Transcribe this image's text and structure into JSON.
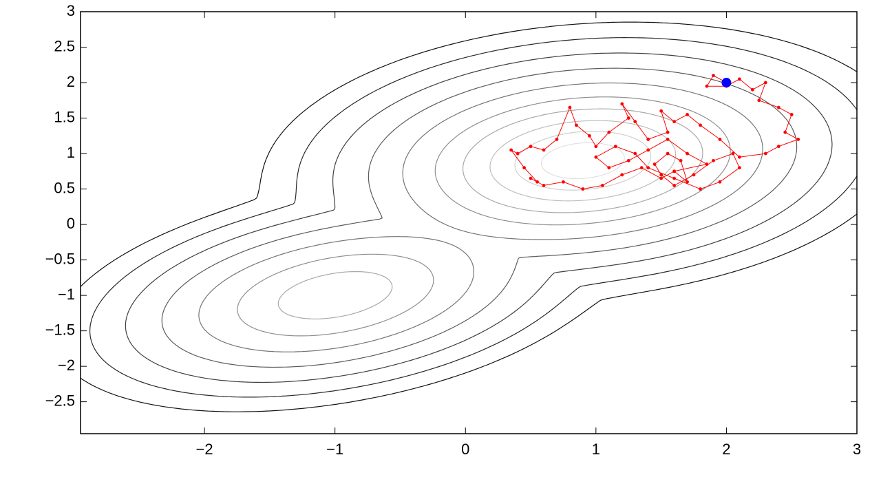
{
  "chart_data": {
    "type": "scatter",
    "x": [
      2.0,
      1.9,
      1.85,
      2.0,
      2.1,
      2.2,
      2.3,
      2.25,
      2.4,
      2.5,
      2.45,
      2.55,
      2.4,
      2.3,
      2.1,
      1.95,
      1.8,
      1.7,
      1.6,
      1.5,
      1.55,
      1.4,
      1.3,
      1.2,
      1.25,
      1.1,
      1.0,
      0.95,
      0.85,
      0.8,
      0.7,
      0.6,
      0.5,
      0.4,
      0.35,
      0.45,
      0.55,
      0.5,
      0.6,
      0.75,
      0.9,
      1.05,
      1.2,
      1.35,
      1.5,
      1.6,
      1.7,
      1.65,
      1.55,
      1.45,
      1.5,
      1.6,
      1.75,
      1.9,
      2.05,
      2.1,
      1.95,
      1.8,
      1.6,
      1.4,
      1.3,
      1.15,
      1.0,
      1.1,
      1.25,
      1.4,
      1.55,
      1.7,
      1.85,
      1.6
    ],
    "y": [
      2.0,
      2.1,
      1.95,
      1.95,
      2.05,
      1.9,
      2.0,
      1.75,
      1.65,
      1.55,
      1.3,
      1.2,
      1.1,
      1.0,
      0.95,
      1.2,
      1.4,
      1.55,
      1.45,
      1.6,
      1.3,
      1.2,
      1.45,
      1.7,
      1.5,
      1.3,
      1.1,
      1.25,
      1.4,
      1.65,
      1.2,
      1.05,
      1.1,
      1.0,
      1.05,
      0.8,
      0.6,
      0.65,
      0.55,
      0.6,
      0.5,
      0.55,
      0.7,
      0.8,
      0.65,
      0.75,
      0.6,
      0.9,
      1.0,
      0.85,
      0.7,
      0.55,
      0.7,
      0.9,
      1.0,
      0.8,
      0.6,
      0.5,
      0.65,
      0.8,
      1.0,
      1.1,
      0.95,
      0.8,
      0.9,
      1.05,
      1.2,
      1.0,
      0.85,
      0.75
    ],
    "color": "#ff0000",
    "start_color": "#0000ff",
    "xlim": [
      -2.95,
      3
    ],
    "ylim": [
      -2.95,
      3
    ],
    "xticks": [
      {
        "value": -2,
        "label": "−2"
      },
      {
        "value": -1,
        "label": "−1"
      },
      0,
      1,
      2,
      3
    ],
    "yticks": [
      {
        "value": -2.5,
        "label": "−2.5"
      },
      {
        "value": -2,
        "label": "−2"
      },
      {
        "value": -1.5,
        "label": "−1.5"
      },
      {
        "value": -1,
        "label": "−1"
      },
      {
        "value": -0.5,
        "label": "−0.5"
      },
      0,
      0.5,
      1,
      1.5,
      2,
      2.5,
      3
    ]
  }
}
